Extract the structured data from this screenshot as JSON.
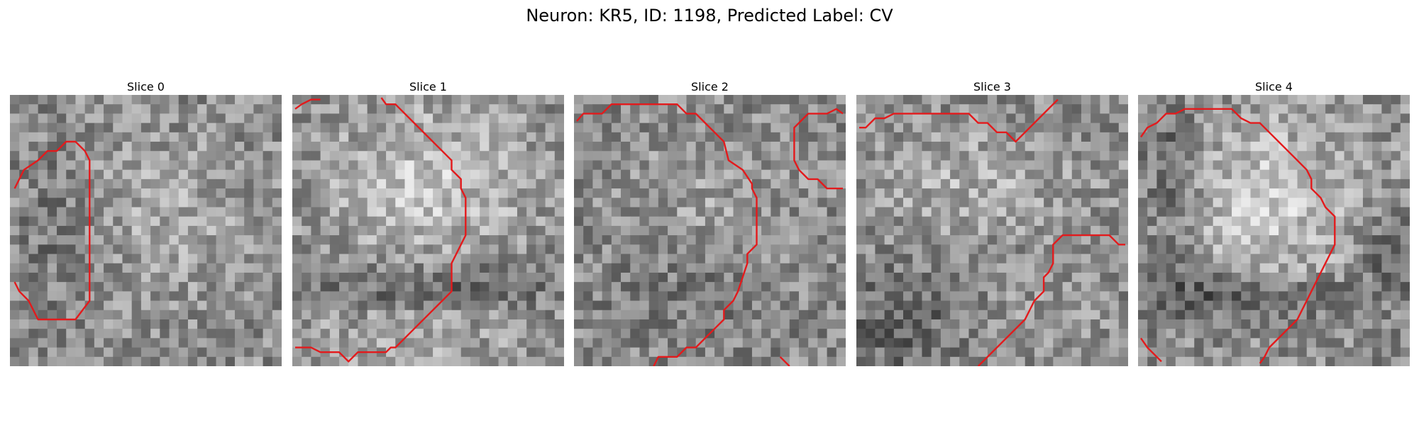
{
  "figure": {
    "title": "Neuron: KR5, ID: 1198, Predicted Label: CV",
    "grid_size": 29,
    "contour_color": "#e31a1c",
    "colormap": "grayscale"
  },
  "panels": [
    {
      "title": "Slice 0"
    },
    {
      "title": "Slice 1"
    },
    {
      "title": "Slice 2"
    },
    {
      "title": "Slice 3"
    },
    {
      "title": "Slice 4"
    }
  ]
}
